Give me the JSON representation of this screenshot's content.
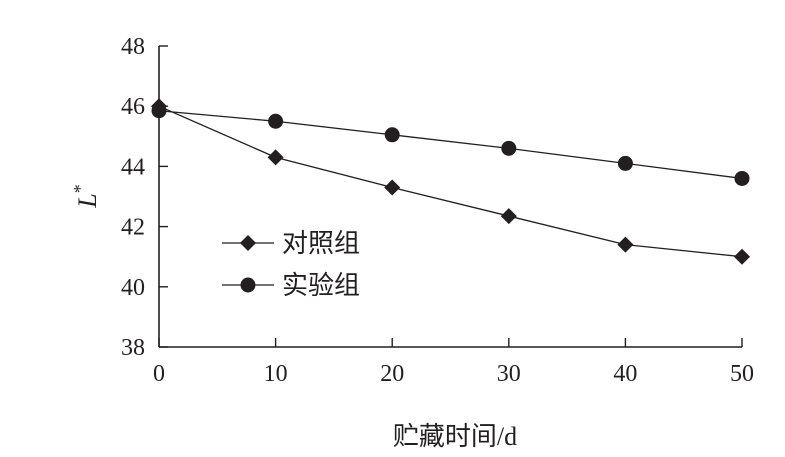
{
  "chart_data": {
    "type": "line",
    "xlabel": "贮藏时间/d",
    "ylabel": "L*",
    "ylabel_main": "L",
    "ylabel_sup": "*",
    "xlim": [
      0,
      50
    ],
    "ylim": [
      38,
      48
    ],
    "x_ticks": [
      0,
      10,
      20,
      30,
      40,
      50
    ],
    "y_ticks": [
      38,
      40,
      42,
      44,
      46,
      48
    ],
    "grid": false,
    "legend_position": "lower-left",
    "series": [
      {
        "name": "对照组",
        "marker": "diamond",
        "x": [
          0,
          10,
          20,
          30,
          40,
          50
        ],
        "y": [
          46.0,
          44.3,
          43.3,
          42.35,
          41.4,
          41.0
        ]
      },
      {
        "name": "实验组",
        "marker": "circle",
        "x": [
          0,
          10,
          20,
          30,
          40,
          50
        ],
        "y": [
          45.85,
          45.5,
          45.05,
          44.6,
          44.1,
          43.6
        ]
      }
    ]
  },
  "colors": {
    "ink": "#231f20"
  }
}
